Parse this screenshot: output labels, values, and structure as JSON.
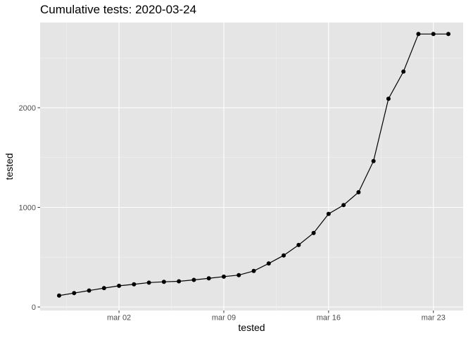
{
  "chart_data": {
    "type": "line",
    "title": "Cumulative tests: 2020-03-24",
    "xlabel": "tested",
    "ylabel": "tested",
    "x_tick_labels": [
      "mar 02",
      "mar 09",
      "mar 16",
      "mar 23"
    ],
    "y_tick_labels": [
      "0",
      "1000",
      "2000"
    ],
    "ylim": [
      0,
      2800
    ],
    "xlim": [
      "2020-02-27",
      "2020-03-25"
    ],
    "grid": true,
    "background": "#e5e5e5",
    "series": [
      {
        "points": true,
        "x": [
          "2020-02-27",
          "2020-02-28",
          "2020-02-29",
          "2020-03-01",
          "2020-03-02",
          "2020-03-03",
          "2020-03-04",
          "2020-03-05",
          "2020-03-06",
          "2020-03-07",
          "2020-03-08",
          "2020-03-09",
          "2020-03-10",
          "2020-03-11",
          "2020-03-12",
          "2020-03-13",
          "2020-03-14",
          "2020-03-15",
          "2020-03-16",
          "2020-03-17",
          "2020-03-18",
          "2020-03-19",
          "2020-03-20",
          "2020-03-21",
          "2020-03-22",
          "2020-03-23",
          "2020-03-24"
        ],
        "values": [
          115,
          140,
          165,
          190,
          213,
          228,
          245,
          253,
          258,
          272,
          288,
          305,
          320,
          362,
          437,
          518,
          623,
          743,
          935,
          1023,
          1152,
          1465,
          2090,
          2363,
          2740,
          2740,
          2740
        ]
      }
    ]
  }
}
